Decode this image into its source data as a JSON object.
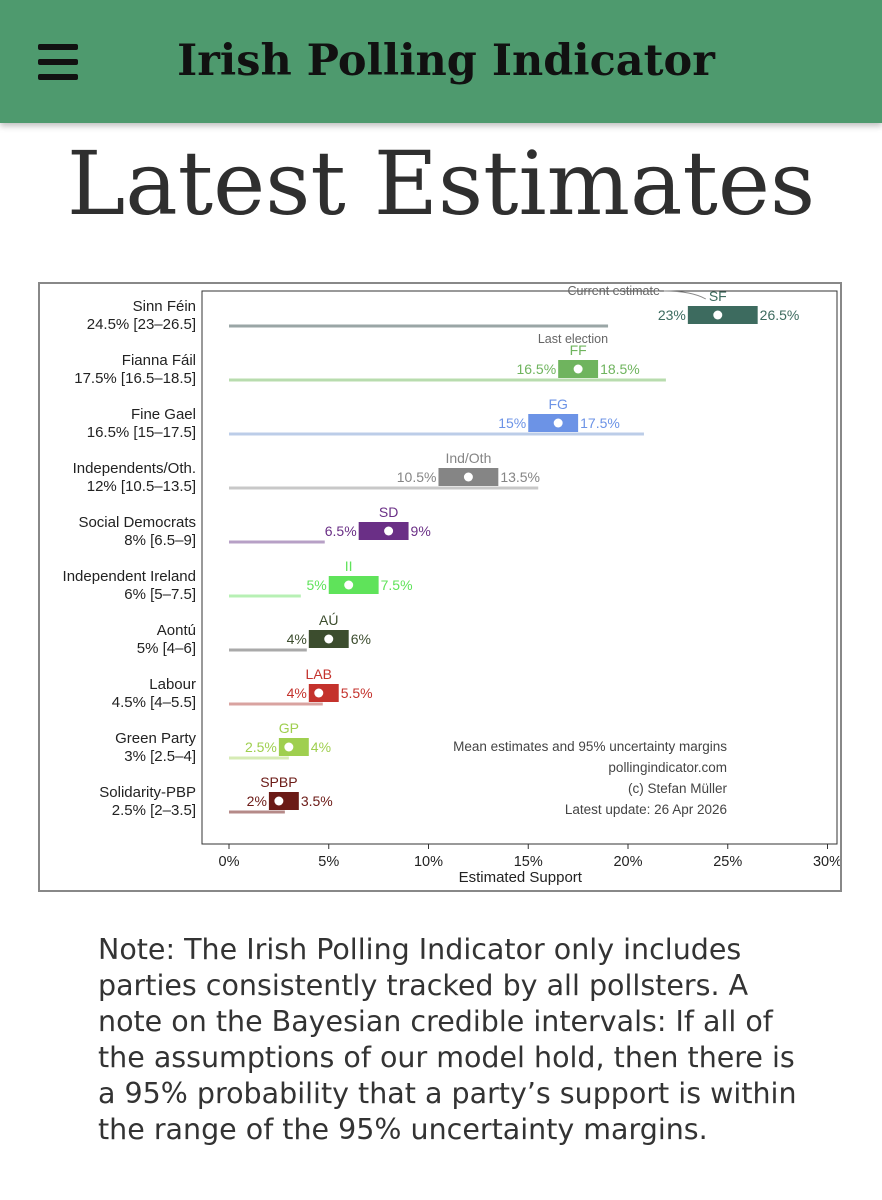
{
  "header": {
    "title": "Irish Polling Indicator",
    "menu_icon": "hamburger-menu-icon"
  },
  "page": {
    "title": "Latest Estimates",
    "note": "Note: The Irish Polling Indicator only includes parties consistently tracked by all pollsters. A note on the Bayesian credible intervals: If all of the assumptions of our model hold, then there is a 95% probability that a party’s support is within the range of the 95% uncertainty margins."
  },
  "chart_data": {
    "type": "interval",
    "xlabel": "Estimated Support",
    "xlim": [
      0,
      30
    ],
    "xticks": [
      0,
      5,
      10,
      15,
      20,
      25,
      30
    ],
    "xtick_labels": [
      "0%",
      "5%",
      "10%",
      "15%",
      "20%",
      "25%",
      "30%"
    ],
    "grid": false,
    "annotations": {
      "current_estimate": "Current estimate",
      "last_election": "Last election"
    },
    "caption": [
      "Mean estimates and 95% uncertainty margins",
      "pollingindicator.com",
      "(c) Stefan Müller",
      "Latest update: 26 Apr 2026"
    ],
    "parties": [
      {
        "name": "Sinn Féin",
        "summary": "24.5% [23–26.5]",
        "abbr": "SF",
        "mean": 24.5,
        "low": 23,
        "high": 26.5,
        "low_label": "23%",
        "high_label": "26.5%",
        "last_election": 19,
        "color": "#3d6b5f",
        "line_color": "#9aa6a6"
      },
      {
        "name": "Fianna Fáil",
        "summary": "17.5% [16.5–18.5]",
        "abbr": "FF",
        "mean": 17.5,
        "low": 16.5,
        "high": 18.5,
        "low_label": "16.5%",
        "high_label": "18.5%",
        "last_election": 21.9,
        "color": "#6fb45e",
        "line_color": "#b8dcae"
      },
      {
        "name": "Fine Gael",
        "summary": "16.5% [15–17.5]",
        "abbr": "FG",
        "mean": 16.5,
        "low": 15,
        "high": 17.5,
        "low_label": "15%",
        "high_label": "17.5%",
        "last_election": 20.8,
        "color": "#6c93e6",
        "line_color": "#bccde8"
      },
      {
        "name": "Independents/Oth.",
        "summary": "12% [10.5–13.5]",
        "abbr": "Ind/Oth",
        "mean": 12,
        "low": 10.5,
        "high": 13.5,
        "low_label": "10.5%",
        "high_label": "13.5%",
        "last_election": 15.5,
        "color": "#858585",
        "line_color": "#c8c8c8"
      },
      {
        "name": "Social Democrats",
        "summary": "8% [6.5–9]",
        "abbr": "SD",
        "mean": 8,
        "low": 6.5,
        "high": 9,
        "low_label": "6.5%",
        "high_label": "9%",
        "last_election": 4.8,
        "color": "#6a2f86",
        "line_color": "#b7a0c6"
      },
      {
        "name": "Independent Ireland",
        "summary": "6% [5–7.5]",
        "abbr": "II",
        "mean": 6,
        "low": 5,
        "high": 7.5,
        "low_label": "5%",
        "high_label": "7.5%",
        "last_election": 3.6,
        "color": "#5fe35a",
        "line_color": "#b7f0b4"
      },
      {
        "name": "Aontú",
        "summary": "5% [4–6]",
        "abbr": "AÚ",
        "mean": 5,
        "low": 4,
        "high": 6,
        "low_label": "4%",
        "high_label": "6%",
        "last_election": 3.9,
        "color": "#3c4d2e",
        "line_color": "#a9a9a9"
      },
      {
        "name": "Labour",
        "summary": "4.5% [4–5.5]",
        "abbr": "LAB",
        "mean": 4.5,
        "low": 4,
        "high": 5.5,
        "low_label": "4%",
        "high_label": "5.5%",
        "last_election": 4.7,
        "color": "#c4322c",
        "line_color": "#d9a3a0"
      },
      {
        "name": "Green Party",
        "summary": "3% [2.5–4]",
        "abbr": "GP",
        "mean": 3,
        "low": 2.5,
        "high": 4,
        "low_label": "2.5%",
        "high_label": "4%",
        "last_election": 3,
        "color": "#9fcf4f",
        "line_color": "#d6ebb4"
      },
      {
        "name": "Solidarity-PBP",
        "summary": "2.5% [2–3.5]",
        "abbr": "SPBP",
        "mean": 2.5,
        "low": 2,
        "high": 3.5,
        "low_label": "2%",
        "high_label": "3.5%",
        "last_election": 2.8,
        "color": "#6b1a16",
        "line_color": "#b58a88"
      }
    ]
  }
}
